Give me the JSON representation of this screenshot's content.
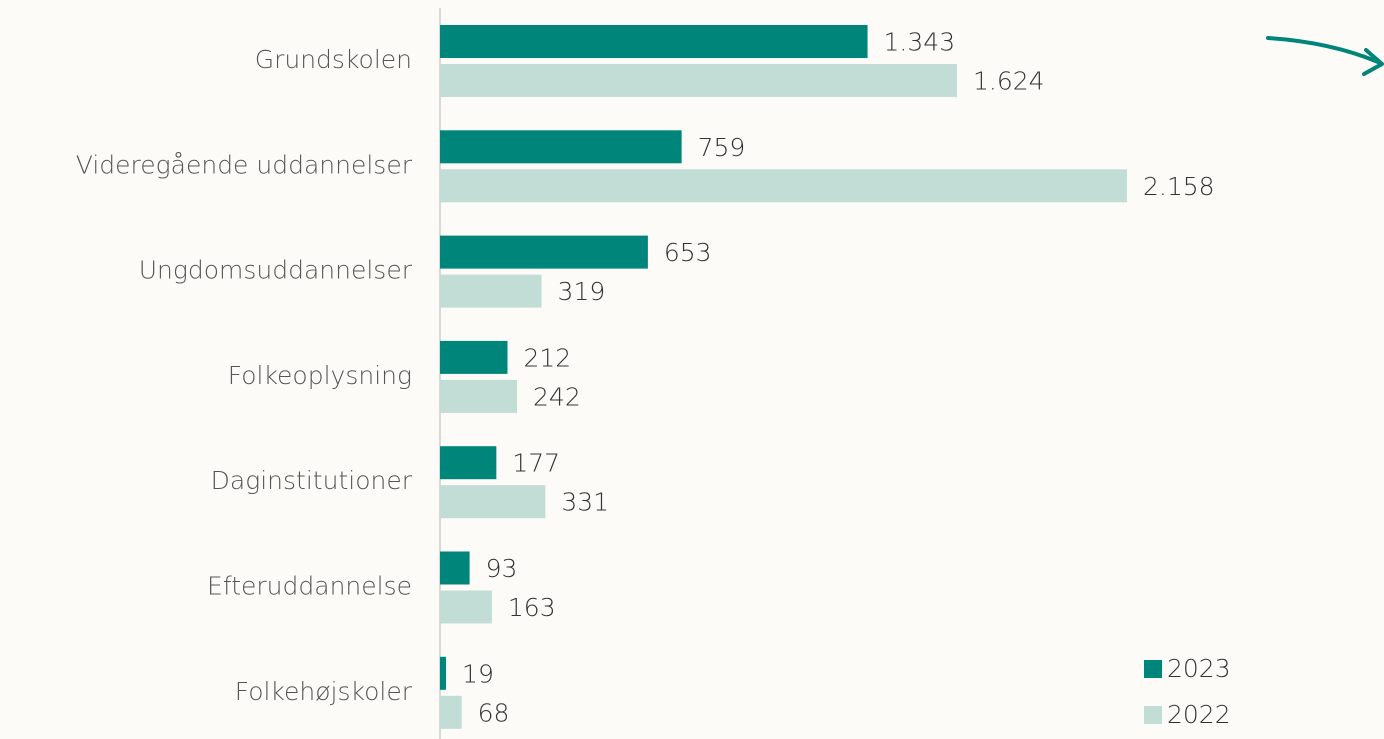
{
  "chart_data": {
    "type": "hbar",
    "categories": [
      "Grundskolen",
      "Videregående uddannelser",
      "Ungdomsuddannelser",
      "Folkeoplysning",
      "Daginstitutioner",
      "Efteruddannelse",
      "Folkehøjskoler"
    ],
    "series": [
      {
        "name": "2023",
        "color": "#00857a",
        "values": [
          1343,
          759,
          653,
          212,
          177,
          93,
          19
        ],
        "value_labels": [
          "1.343",
          "759",
          "653",
          "212",
          "177",
          "93",
          "19"
        ]
      },
      {
        "name": "2022",
        "color": "#c2dcd6",
        "values": [
          1624,
          2158,
          319,
          242,
          331,
          163,
          68
        ],
        "value_labels": [
          "1.624",
          "2.158",
          "319",
          "242",
          "331",
          "163",
          "68"
        ]
      }
    ],
    "legend": "bottom-right"
  }
}
